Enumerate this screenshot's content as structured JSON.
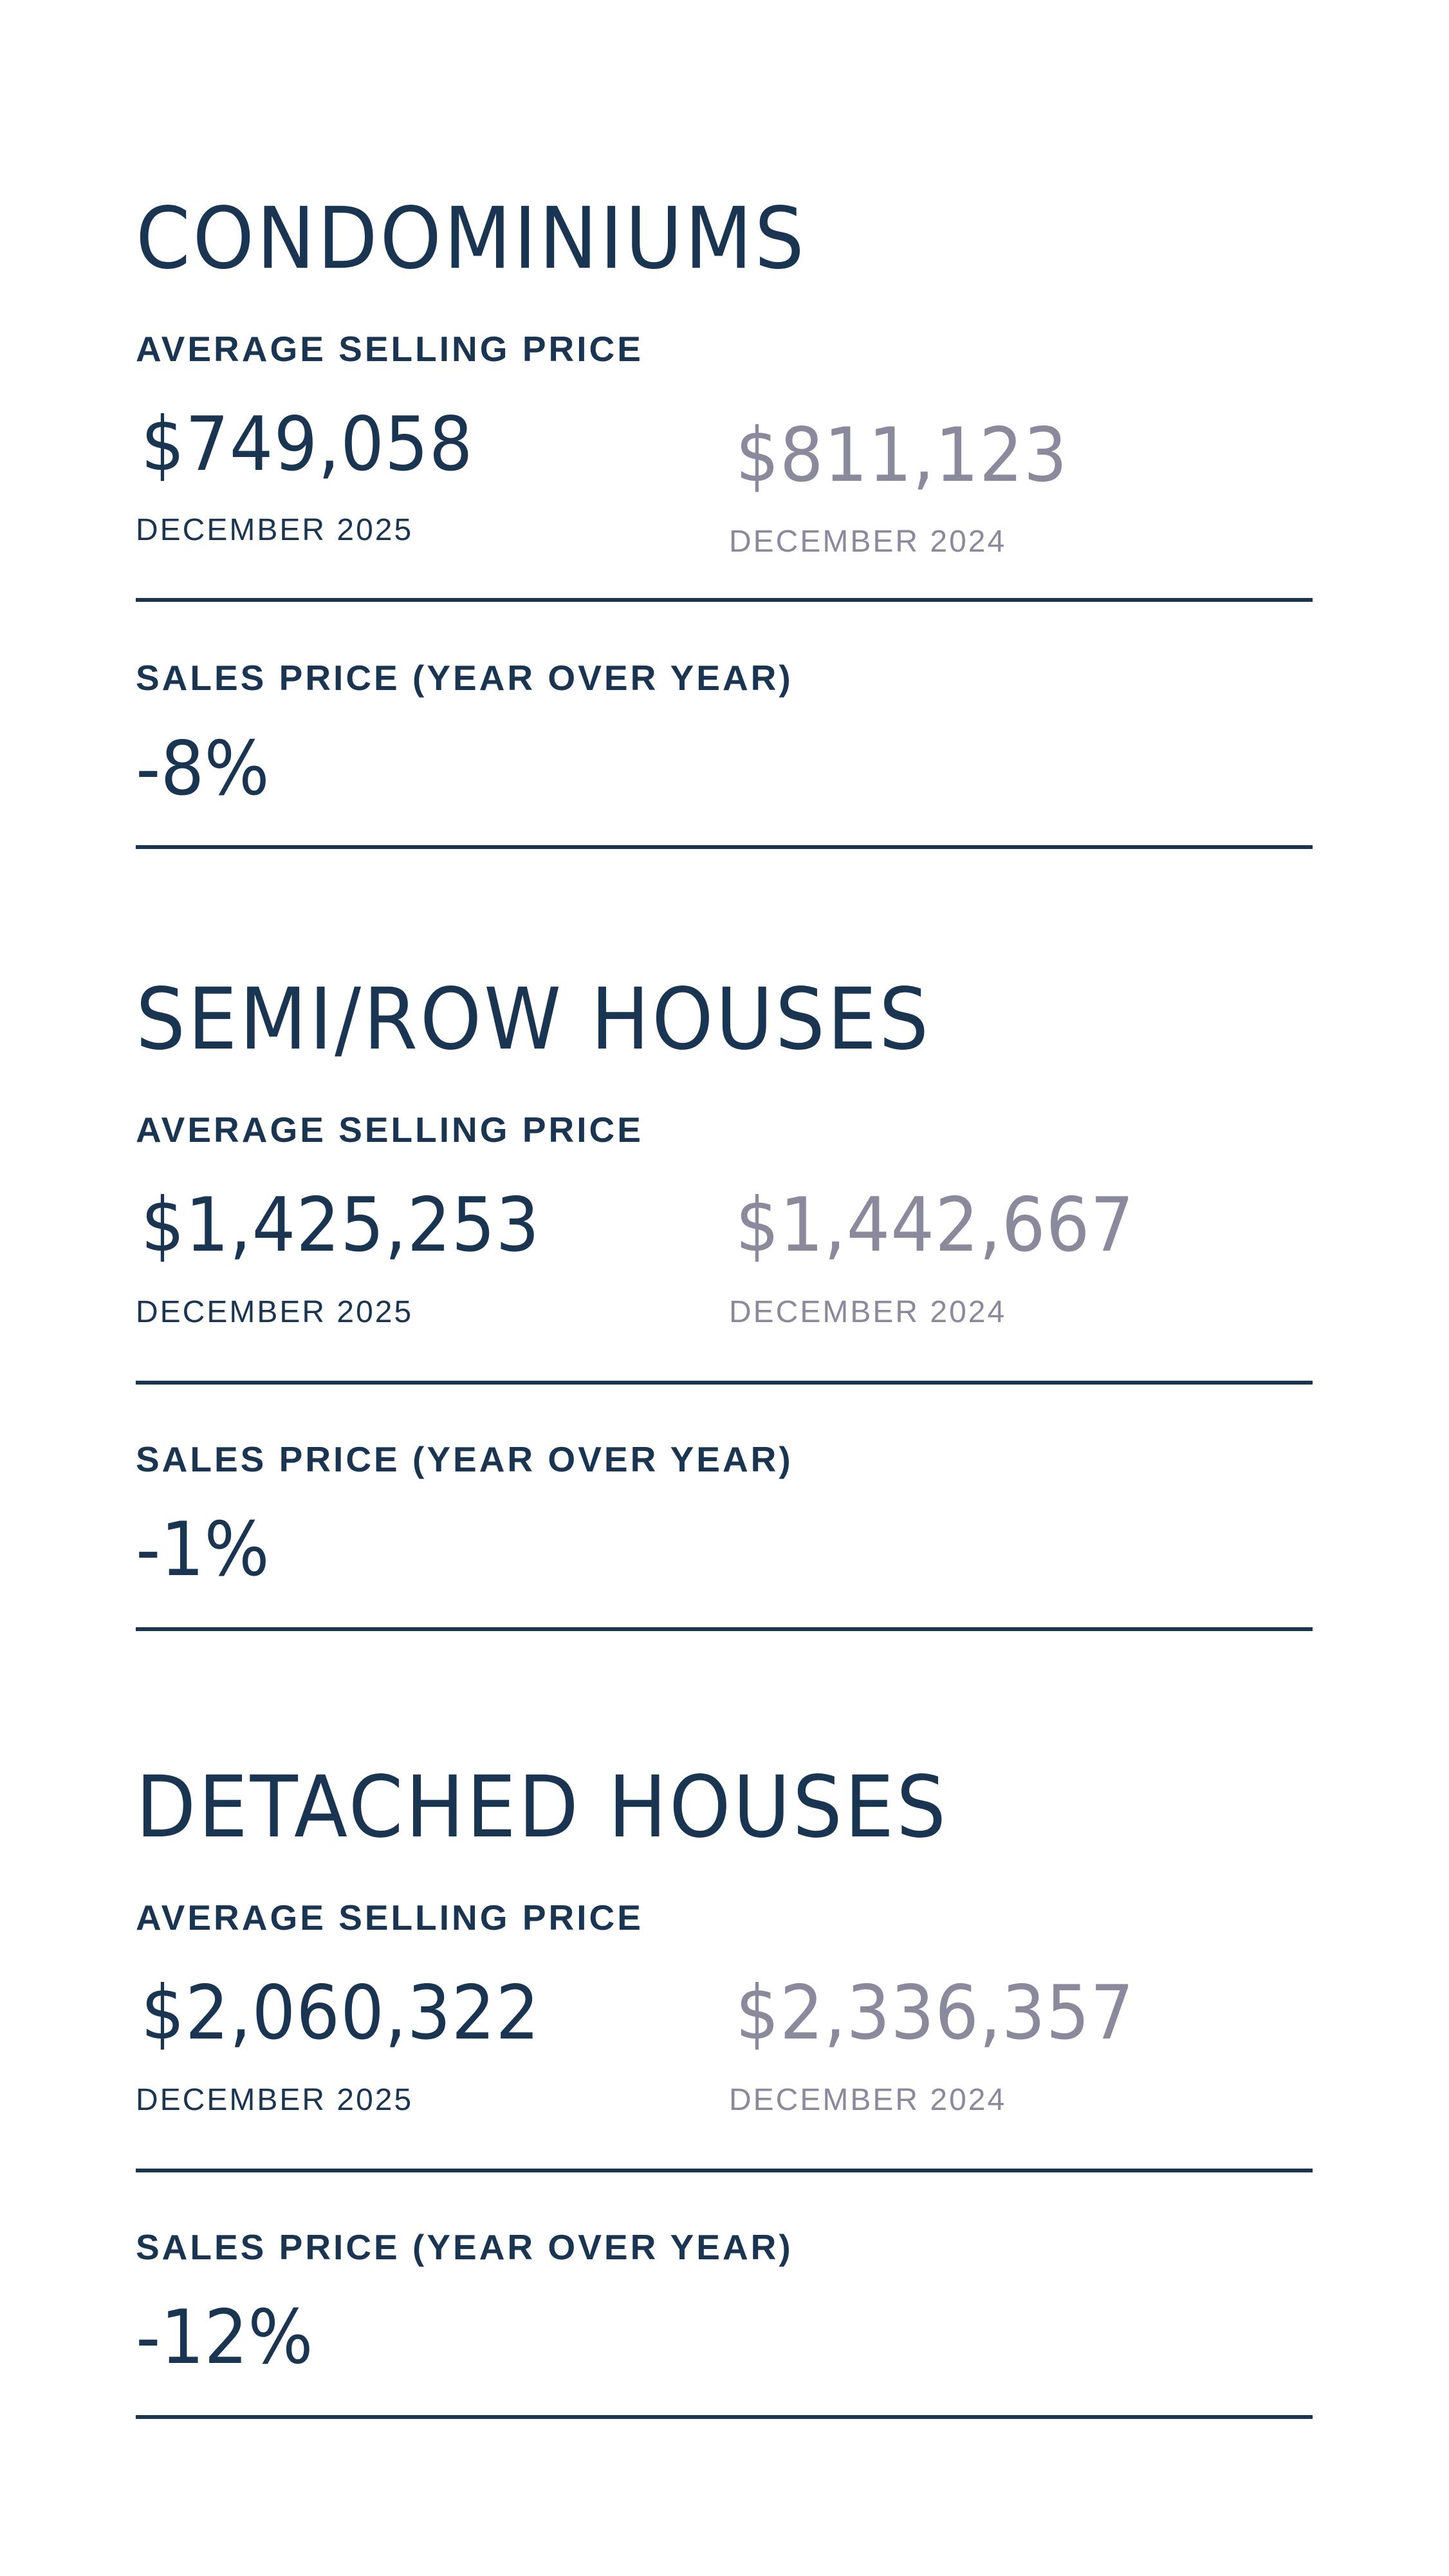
{
  "sections": [
    {
      "title": "CONDOMINIUMS",
      "avg_label": "AVERAGE SELLING PRICE",
      "current_price": "$749,058",
      "current_date": "DECEMBER 2025",
      "previous_price": "$811,123",
      "previous_date": "DECEMBER 2024",
      "yoy_label": "SALES PRICE (YEAR OVER YEAR)",
      "yoy_value": "-8%"
    },
    {
      "title": "SEMI/ROW HOUSES",
      "avg_label": "AVERAGE SELLING PRICE",
      "current_price": "$1,425,253",
      "current_date": "DECEMBER 2025",
      "previous_price": "$1,442,667",
      "previous_date": "DECEMBER 2024",
      "yoy_label": "SALES PRICE (YEAR OVER YEAR)",
      "yoy_value": "-1%"
    },
    {
      "title": "DETACHED HOUSES",
      "avg_label": "AVERAGE SELLING PRICE",
      "current_price": "$2,060,322",
      "current_date": "DECEMBER 2025",
      "previous_price": "$2,336,357",
      "previous_date": "DECEMBER 2024",
      "yoy_label": "SALES PRICE (YEAR OVER YEAR)",
      "yoy_value": "-12%"
    }
  ],
  "colors": {
    "primary": "#1a3552",
    "muted": "#8a8a9c",
    "background": "#ffffff"
  }
}
